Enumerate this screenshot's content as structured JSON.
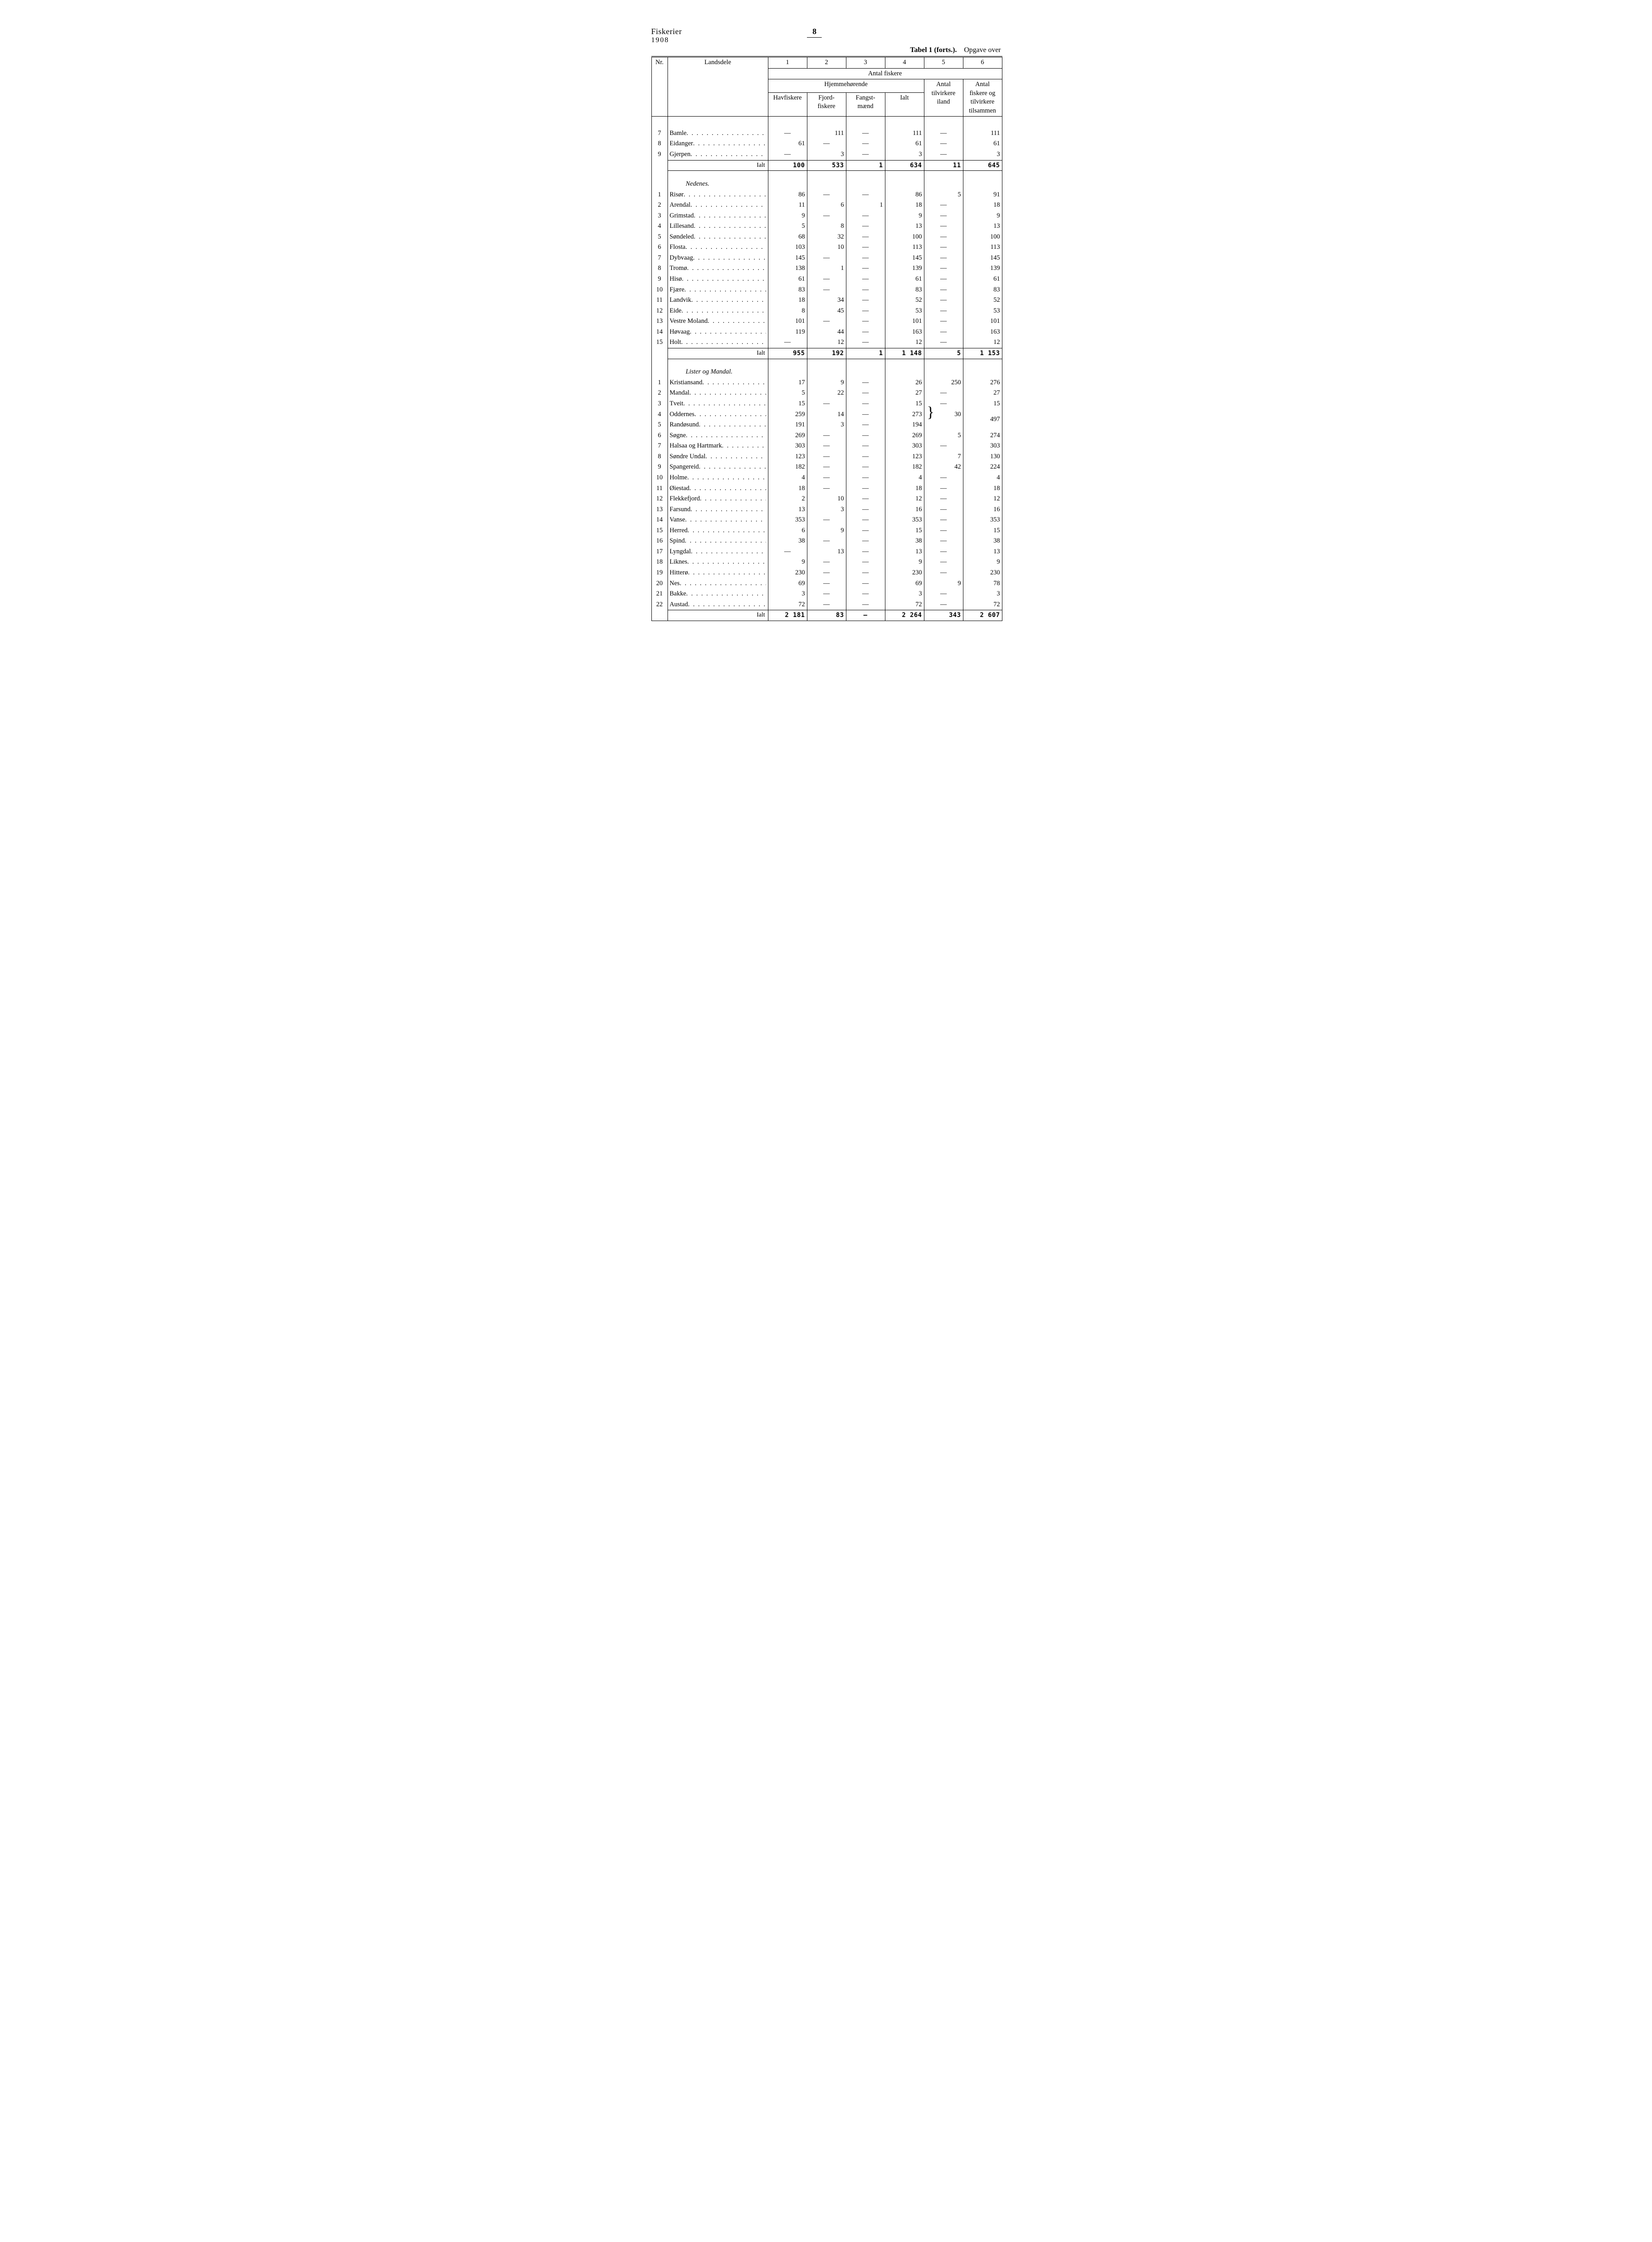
{
  "page_header": {
    "left_title": "Fiskerier",
    "left_year": "1908",
    "page_number": "8",
    "right_text_a": "Tabel 1 (forts.).",
    "right_text_b": "Opgave over"
  },
  "columns": {
    "nr": "Nr.",
    "landsdele": "Landsdele",
    "num1": "1",
    "num2": "2",
    "num3": "3",
    "num4": "4",
    "num5": "5",
    "num6": "6",
    "group_top": "Antal fiskere",
    "group_sub": "Hjemmehørende",
    "havfiskere": "Havfiskere",
    "fjordfiskere": "Fjord-\nfiskere",
    "fangstmaend": "Fangst-\nmænd",
    "ialt": "Ialt",
    "antal_tilvirkere": "Antal\ntilvirkere\niland",
    "antal_fiskere_og": "Antal\nfiskere og\ntilvirkere\ntilsammen"
  },
  "section_ialt_label": "Ialt",
  "sections": {
    "top": {
      "rows": [
        {
          "nr": "7",
          "name": "Bamle",
          "c1": "—",
          "c2": "111",
          "c3": "—",
          "c4": "111",
          "c5": "—",
          "c6": "111"
        },
        {
          "nr": "8",
          "name": "Eidanger",
          "c1": "61",
          "c2": "—",
          "c3": "—",
          "c4": "61",
          "c5": "—",
          "c6": "61"
        },
        {
          "nr": "9",
          "name": "Gjerpen",
          "c1": "—",
          "c2": "3",
          "c3": "—",
          "c4": "3",
          "c5": "—",
          "c6": "3"
        }
      ],
      "total": {
        "c1": "100",
        "c2": "533",
        "c3": "1",
        "c4": "634",
        "c5": "11",
        "c6": "645"
      }
    },
    "nedenes": {
      "title": "Nedenes.",
      "rows": [
        {
          "nr": "1",
          "name": "Risør",
          "c1": "86",
          "c2": "—",
          "c3": "—",
          "c4": "86",
          "c5": "5",
          "c6": "91"
        },
        {
          "nr": "2",
          "name": "Arendal",
          "c1": "11",
          "c2": "6",
          "c3": "1",
          "c4": "18",
          "c5": "—",
          "c6": "18"
        },
        {
          "nr": "3",
          "name": "Grimstad",
          "c1": "9",
          "c2": "—",
          "c3": "—",
          "c4": "9",
          "c5": "—",
          "c6": "9"
        },
        {
          "nr": "4",
          "name": "Lillesand",
          "c1": "5",
          "c2": "8",
          "c3": "—",
          "c4": "13",
          "c5": "—",
          "c6": "13"
        },
        {
          "nr": "5",
          "name": "Søndeled",
          "c1": "68",
          "c2": "32",
          "c3": "—",
          "c4": "100",
          "c5": "—",
          "c6": "100"
        },
        {
          "nr": "6",
          "name": "Flosta",
          "c1": "103",
          "c2": "10",
          "c3": "—",
          "c4": "113",
          "c5": "—",
          "c6": "113"
        },
        {
          "nr": "7",
          "name": "Dybvaag",
          "c1": "145",
          "c2": "—",
          "c3": "—",
          "c4": "145",
          "c5": "—",
          "c6": "145"
        },
        {
          "nr": "8",
          "name": "Tromø",
          "c1": "138",
          "c2": "1",
          "c3": "—",
          "c4": "139",
          "c5": "—",
          "c6": "139"
        },
        {
          "nr": "9",
          "name": "Hisø",
          "c1": "61",
          "c2": "—",
          "c3": "—",
          "c4": "61",
          "c5": "—",
          "c6": "61"
        },
        {
          "nr": "10",
          "name": "Fjære",
          "c1": "83",
          "c2": "—",
          "c3": "—",
          "c4": "83",
          "c5": "—",
          "c6": "83"
        },
        {
          "nr": "11",
          "name": "Landvik",
          "c1": "18",
          "c2": "34",
          "c3": "—",
          "c4": "52",
          "c5": "—",
          "c6": "52"
        },
        {
          "nr": "12",
          "name": "Eide",
          "c1": "8",
          "c2": "45",
          "c3": "—",
          "c4": "53",
          "c5": "—",
          "c6": "53"
        },
        {
          "nr": "13",
          "name": "Vestre Moland",
          "c1": "101",
          "c2": "—",
          "c3": "—",
          "c4": "101",
          "c5": "—",
          "c6": "101"
        },
        {
          "nr": "14",
          "name": "Høvaag",
          "c1": "119",
          "c2": "44",
          "c3": "—",
          "c4": "163",
          "c5": "—",
          "c6": "163"
        },
        {
          "nr": "15",
          "name": "Holt",
          "c1": "—",
          "c2": "12",
          "c3": "—",
          "c4": "12",
          "c5": "—",
          "c6": "12"
        }
      ],
      "total": {
        "c1": "955",
        "c2": "192",
        "c3": "1",
        "c4": "1 148",
        "c5": "5",
        "c6": "1 153"
      }
    },
    "lister": {
      "title": "Lister og Mandal.",
      "rows": [
        {
          "nr": "1",
          "name": "Kristiansand",
          "c1": "17",
          "c2": "9",
          "c3": "—",
          "c4": "26",
          "c5": "250",
          "c6": "276"
        },
        {
          "nr": "2",
          "name": "Mandal",
          "c1": "5",
          "c2": "22",
          "c3": "—",
          "c4": "27",
          "c5": "—",
          "c6": "27"
        },
        {
          "nr": "3",
          "name": "Tveit",
          "c1": "15",
          "c2": "—",
          "c3": "—",
          "c4": "15",
          "c5": "—",
          "c6": "15"
        },
        {
          "nr": "4",
          "name": "Oddernes",
          "c1": "259",
          "c2": "14",
          "c3": "—",
          "c4": "273",
          "c5": "BRACE",
          "c6": "497",
          "brace": true
        },
        {
          "nr": "5",
          "name": "Randøsund",
          "c1": "191",
          "c2": "3",
          "c3": "—",
          "c4": "194",
          "c5": "",
          "c6": "",
          "brace_second": true
        },
        {
          "nr": "6",
          "name": "Søgne",
          "c1": "269",
          "c2": "—",
          "c3": "—",
          "c4": "269",
          "c5": "5",
          "c6": "274"
        },
        {
          "nr": "7",
          "name": "Halsaa og Hartmark",
          "c1": "303",
          "c2": "—",
          "c3": "—",
          "c4": "303",
          "c5": "—",
          "c6": "303"
        },
        {
          "nr": "8",
          "name": "Søndre Undal",
          "c1": "123",
          "c2": "—",
          "c3": "—",
          "c4": "123",
          "c5": "7",
          "c6": "130"
        },
        {
          "nr": "9",
          "name": "Spangereid",
          "c1": "182",
          "c2": "—",
          "c3": "—",
          "c4": "182",
          "c5": "42",
          "c6": "224"
        },
        {
          "nr": "10",
          "name": "Holme",
          "c1": "4",
          "c2": "—",
          "c3": "—",
          "c4": "4",
          "c5": "—",
          "c6": "4"
        },
        {
          "nr": "11",
          "name": "Øiestad",
          "c1": "18",
          "c2": "—",
          "c3": "—",
          "c4": "18",
          "c5": "—",
          "c6": "18"
        },
        {
          "nr": "12",
          "name": "Flekkefjord",
          "c1": "2",
          "c2": "10",
          "c3": "—",
          "c4": "12",
          "c5": "—",
          "c6": "12"
        },
        {
          "nr": "13",
          "name": "Farsund",
          "c1": "13",
          "c2": "3",
          "c3": "—",
          "c4": "16",
          "c5": "—",
          "c6": "16"
        },
        {
          "nr": "14",
          "name": "Vanse",
          "c1": "353",
          "c2": "—",
          "c3": "—",
          "c4": "353",
          "c5": "—",
          "c6": "353"
        },
        {
          "nr": "15",
          "name": "Herred",
          "c1": "6",
          "c2": "9",
          "c3": "—",
          "c4": "15",
          "c5": "—",
          "c6": "15"
        },
        {
          "nr": "16",
          "name": "Spind",
          "c1": "38",
          "c2": "—",
          "c3": "—",
          "c4": "38",
          "c5": "—",
          "c6": "38"
        },
        {
          "nr": "17",
          "name": "Lyngdal",
          "c1": "—",
          "c2": "13",
          "c3": "—",
          "c4": "13",
          "c5": "—",
          "c6": "13"
        },
        {
          "nr": "18",
          "name": "Liknes",
          "c1": "9",
          "c2": "—",
          "c3": "—",
          "c4": "9",
          "c5": "—",
          "c6": "9"
        },
        {
          "nr": "19",
          "name": "Hitterø",
          "c1": "230",
          "c2": "—",
          "c3": "—",
          "c4": "230",
          "c5": "—",
          "c6": "230"
        },
        {
          "nr": "20",
          "name": "Nes",
          "c1": "69",
          "c2": "—",
          "c3": "—",
          "c4": "69",
          "c5": "9",
          "c6": "78"
        },
        {
          "nr": "21",
          "name": "Bakke",
          "c1": "3",
          "c2": "—",
          "c3": "—",
          "c4": "3",
          "c5": "—",
          "c6": "3"
        },
        {
          "nr": "22",
          "name": "Austad",
          "c1": "72",
          "c2": "—",
          "c3": "—",
          "c4": "72",
          "c5": "—",
          "c6": "72"
        }
      ],
      "brace_value_c5": "30",
      "total": {
        "c1": "2 181",
        "c2": "83",
        "c3": "—",
        "c4": "2 264",
        "c5": "343",
        "c6": "2 607"
      }
    }
  }
}
